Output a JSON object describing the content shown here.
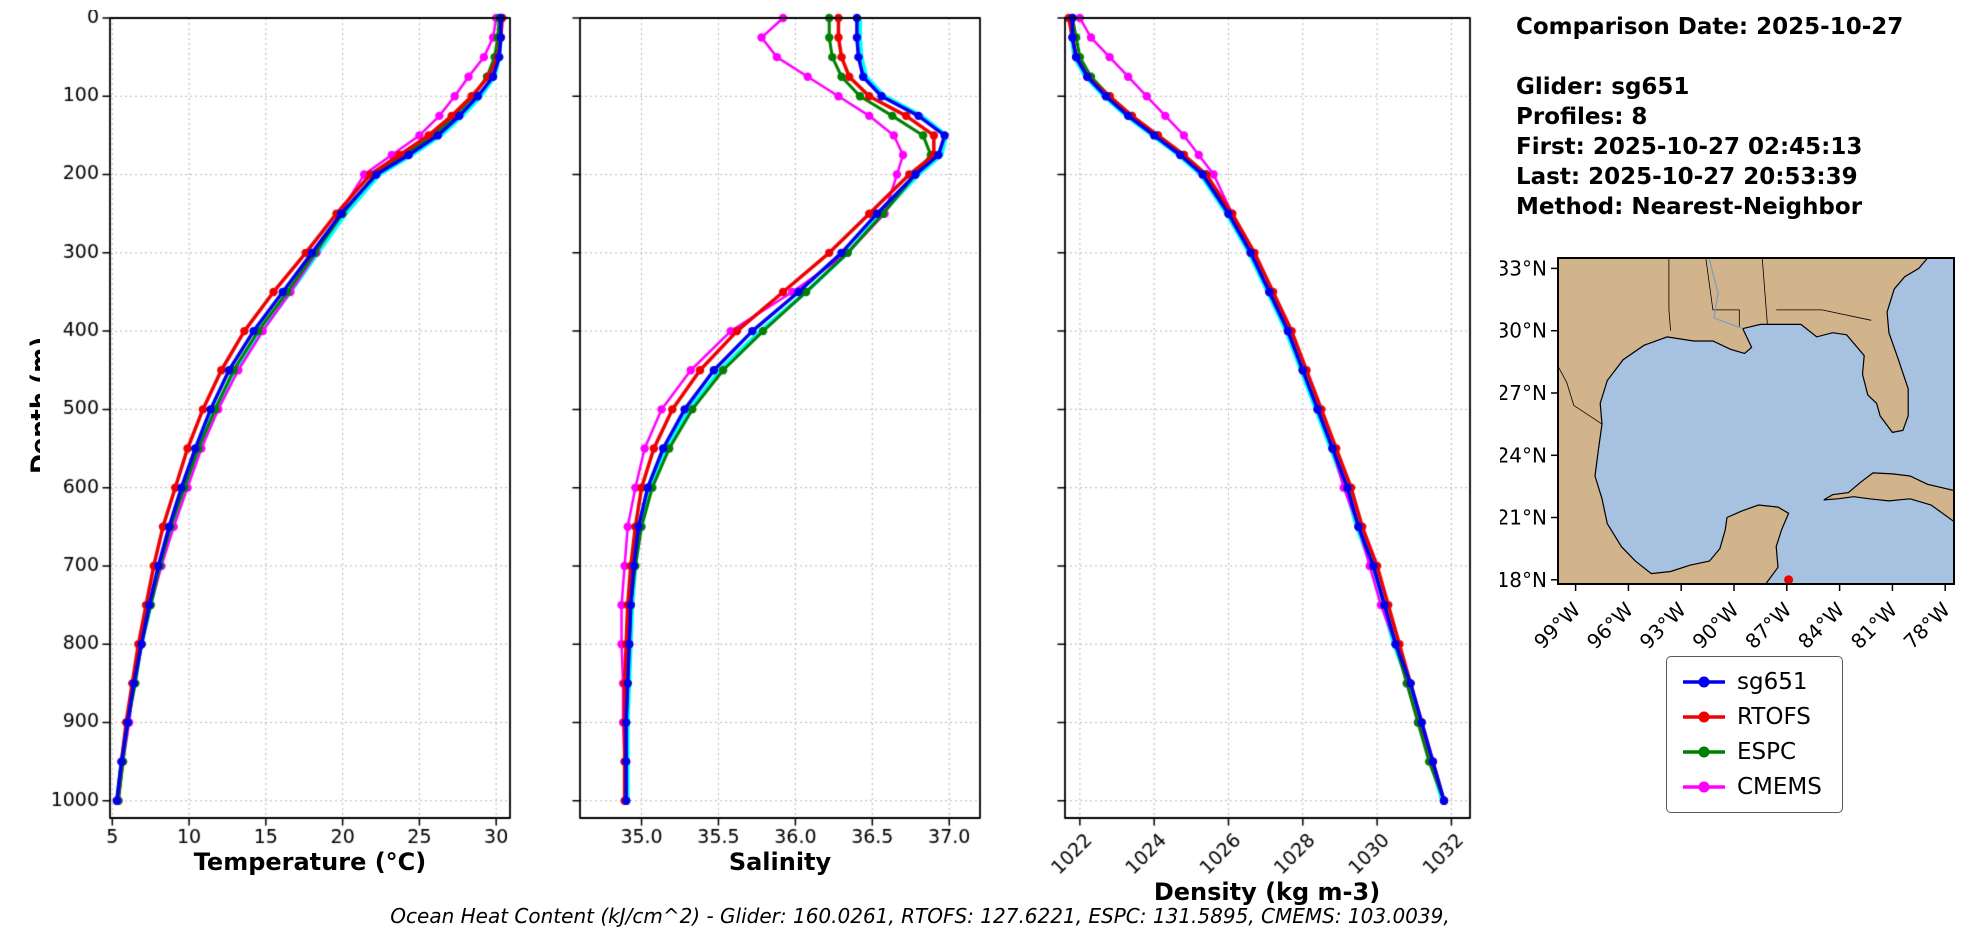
{
  "axes": {
    "depth_label": "Depth (m)"
  },
  "info": {
    "comparison_date": "Comparison Date: 2025-10-27",
    "glider": "Glider: sg651",
    "profiles": "Profiles: 8",
    "first": "First: 2025-10-27 02:45:13",
    "last": "Last: 2025-10-27 20:53:39",
    "method": "Method: Nearest-Neighbor"
  },
  "legend": {
    "items": [
      {
        "label": "sg651",
        "color": "#0000ee"
      },
      {
        "label": "RTOFS",
        "color": "#ee0000"
      },
      {
        "label": "ESPC",
        "color": "#008000"
      },
      {
        "label": "CMEMS",
        "color": "#ff00ff"
      }
    ]
  },
  "map": {
    "land_color": "#d2b48c",
    "water_color": "#a7c2e0",
    "lat_ticks": [
      "33°N",
      "30°N",
      "27°N",
      "24°N",
      "21°N",
      "18°N"
    ],
    "lon_ticks": [
      "99°W",
      "96°W",
      "93°W",
      "90°W",
      "87°W",
      "84°W",
      "81°W",
      "78°W"
    ]
  },
  "footer": {
    "ohc": "Ocean Heat Content (kJ/cm^2) - Glider: 160.0261,  RTOFS: 127.6221,  ESPC: 131.5895,  CMEMS: 103.0039,"
  },
  "chart_data": [
    {
      "type": "line",
      "xlabel": "Temperature (°C)",
      "ylabel": "Depth (m)",
      "xlim": [
        4.85,
        30.9
      ],
      "xticks": [
        5,
        10,
        15,
        20,
        25,
        30
      ],
      "xtick_labels": [
        "5",
        "10",
        "15",
        "20",
        "25",
        "30"
      ],
      "ylim": [
        0,
        1022
      ],
      "yticks": [
        0,
        100,
        200,
        300,
        400,
        500,
        600,
        700,
        800,
        900,
        1000
      ],
      "ytick_labels": [
        "0",
        "100",
        "200",
        "300",
        "400",
        "500",
        "600",
        "700",
        "800",
        "900",
        "1000"
      ],
      "depths": [
        0,
        25,
        50,
        75,
        100,
        125,
        150,
        175,
        200,
        250,
        300,
        350,
        400,
        450,
        500,
        550,
        600,
        650,
        700,
        750,
        800,
        850,
        900,
        950,
        1000
      ],
      "series": [
        {
          "name": "glider-profiles",
          "color": "#00ffff",
          "lw": 4,
          "markers": false,
          "values": [
            30.3,
            30.3,
            30.2,
            29.9,
            29.0,
            27.8,
            26.4,
            24.5,
            22.4,
            20.2,
            18.4,
            16.6,
            14.7,
            13.0,
            11.7,
            10.6,
            9.7,
            8.8,
            8.1,
            7.5,
            6.9,
            6.4,
            6.0,
            5.6,
            5.3
          ]
        },
        {
          "name": "CMEMS",
          "color": "#ff00ff",
          "lw": 2.5,
          "markers": true,
          "values": [
            30.0,
            29.8,
            29.2,
            28.2,
            27.3,
            26.3,
            25.0,
            23.2,
            21.4,
            19.8,
            18.3,
            16.6,
            14.8,
            13.2,
            11.9,
            10.8,
            9.9,
            9.0,
            8.2,
            7.5,
            6.9,
            6.4,
            6.1,
            5.7,
            5.4
          ]
        },
        {
          "name": "ESPC",
          "color": "#008000",
          "lw": 3,
          "markers": true,
          "values": [
            30.2,
            30.1,
            29.9,
            29.4,
            28.5,
            27.3,
            25.9,
            24.0,
            22.1,
            20.0,
            18.2,
            16.4,
            14.5,
            12.9,
            11.7,
            10.6,
            9.7,
            8.8,
            8.1,
            7.5,
            6.9,
            6.5,
            6.0,
            5.7,
            5.4
          ]
        },
        {
          "name": "RTOFS",
          "color": "#ee0000",
          "lw": 3.5,
          "markers": true,
          "values": [
            30.4,
            30.3,
            30.1,
            29.5,
            28.4,
            27.1,
            25.6,
            23.7,
            21.8,
            19.6,
            17.6,
            15.5,
            13.6,
            12.1,
            10.9,
            9.9,
            9.1,
            8.3,
            7.7,
            7.2,
            6.7,
            6.3,
            5.9,
            5.6,
            5.3
          ]
        },
        {
          "name": "sg651",
          "color": "#0000ee",
          "lw": 3.5,
          "markers": true,
          "values": [
            30.3,
            30.3,
            30.2,
            29.8,
            28.8,
            27.6,
            26.2,
            24.3,
            22.2,
            19.9,
            18.0,
            16.1,
            14.2,
            12.6,
            11.4,
            10.4,
            9.5,
            8.7,
            8.0,
            7.4,
            6.9,
            6.4,
            6.0,
            5.6,
            5.3
          ]
        }
      ]
    },
    {
      "type": "line",
      "xlabel": "Salinity",
      "ylabel": "Depth (m)",
      "xlim": [
        34.6,
        37.2
      ],
      "xticks": [
        35.0,
        35.5,
        36.0,
        36.5,
        37.0
      ],
      "xtick_labels": [
        "35.0",
        "35.5",
        "36.0",
        "36.5",
        "37.0"
      ],
      "ylim": [
        0,
        1022
      ],
      "yticks": [
        0,
        100,
        200,
        300,
        400,
        500,
        600,
        700,
        800,
        900,
        1000
      ],
      "ytick_labels": [
        "0",
        "100",
        "200",
        "300",
        "400",
        "500",
        "600",
        "700",
        "800",
        "900",
        "1000"
      ],
      "depths": [
        0,
        25,
        50,
        75,
        100,
        125,
        150,
        175,
        200,
        250,
        300,
        350,
        400,
        450,
        500,
        550,
        600,
        650,
        700,
        750,
        800,
        850,
        900,
        950,
        1000
      ],
      "series": [
        {
          "name": "glider-profiles",
          "color": "#00ffff",
          "lw": 4,
          "markers": false,
          "values": [
            36.42,
            36.42,
            36.43,
            36.46,
            36.58,
            36.82,
            36.98,
            36.95,
            36.8,
            36.56,
            36.34,
            36.07,
            35.77,
            35.51,
            35.31,
            35.16,
            35.06,
            34.99,
            34.96,
            34.94,
            34.93,
            34.92,
            34.91,
            34.91,
            34.91
          ]
        },
        {
          "name": "CMEMS",
          "color": "#ff00ff",
          "lw": 2.5,
          "markers": true,
          "values": [
            35.92,
            35.78,
            35.88,
            36.08,
            36.28,
            36.48,
            36.64,
            36.7,
            36.66,
            36.58,
            36.34,
            35.98,
            35.58,
            35.32,
            35.13,
            35.02,
            34.96,
            34.91,
            34.89,
            34.87,
            34.87,
            34.88,
            34.88,
            34.89,
            34.9
          ]
        },
        {
          "name": "ESPC",
          "color": "#008000",
          "lw": 3,
          "markers": true,
          "values": [
            36.22,
            36.22,
            36.24,
            36.3,
            36.42,
            36.63,
            36.83,
            36.88,
            36.78,
            36.57,
            36.34,
            36.07,
            35.79,
            35.53,
            35.33,
            35.18,
            35.07,
            35.0,
            34.96,
            34.93,
            34.92,
            34.91,
            34.9,
            34.9,
            34.9
          ]
        },
        {
          "name": "RTOFS",
          "color": "#ee0000",
          "lw": 3.5,
          "markers": true,
          "values": [
            36.28,
            36.28,
            36.3,
            36.35,
            36.48,
            36.72,
            36.9,
            36.9,
            36.74,
            36.48,
            36.22,
            35.92,
            35.62,
            35.38,
            35.2,
            35.08,
            35.0,
            34.96,
            34.93,
            34.91,
            34.9,
            34.89,
            34.89,
            34.89,
            34.89
          ]
        },
        {
          "name": "sg651",
          "color": "#0000ee",
          "lw": 3.5,
          "markers": true,
          "values": [
            36.4,
            36.4,
            36.41,
            36.44,
            36.56,
            36.8,
            36.97,
            36.93,
            36.78,
            36.53,
            36.3,
            36.02,
            35.72,
            35.47,
            35.28,
            35.14,
            35.04,
            34.98,
            34.95,
            34.93,
            34.92,
            34.91,
            34.9,
            34.9,
            34.9
          ]
        }
      ]
    },
    {
      "type": "line",
      "xlabel": "Density (kg m-3)",
      "ylabel": "Depth (m)",
      "xlim": [
        1021.6,
        1032.5
      ],
      "xticks": [
        1022,
        1024,
        1026,
        1028,
        1030,
        1032
      ],
      "xtick_labels": [
        "1022",
        "1024",
        "1026",
        "1028",
        "1030",
        "1032"
      ],
      "ylim": [
        0,
        1022
      ],
      "yticks": [
        0,
        100,
        200,
        300,
        400,
        500,
        600,
        700,
        800,
        900,
        1000
      ],
      "ytick_labels": [
        "0",
        "100",
        "200",
        "300",
        "400",
        "500",
        "600",
        "700",
        "800",
        "900",
        "1000"
      ],
      "depths": [
        0,
        25,
        50,
        75,
        100,
        125,
        150,
        175,
        200,
        250,
        300,
        350,
        400,
        450,
        500,
        550,
        600,
        650,
        700,
        750,
        800,
        850,
        900,
        950,
        1000
      ],
      "series": [
        {
          "name": "glider-profiles",
          "color": "#00ffff",
          "lw": 4,
          "markers": false,
          "values": [
            1021.75,
            1021.78,
            1021.85,
            1022.15,
            1022.65,
            1023.25,
            1023.95,
            1024.65,
            1025.25,
            1025.95,
            1026.55,
            1027.05,
            1027.55,
            1027.95,
            1028.35,
            1028.75,
            1029.15,
            1029.45,
            1029.85,
            1030.15,
            1030.45,
            1030.85,
            1031.15,
            1031.45,
            1031.75
          ]
        },
        {
          "name": "CMEMS",
          "color": "#ff00ff",
          "lw": 2.5,
          "markers": true,
          "values": [
            1022.0,
            1022.3,
            1022.8,
            1023.3,
            1023.8,
            1024.3,
            1024.8,
            1025.2,
            1025.6,
            1026.1,
            1026.6,
            1027.1,
            1027.6,
            1028.0,
            1028.4,
            1028.8,
            1029.1,
            1029.5,
            1029.8,
            1030.1,
            1030.5,
            1030.8,
            1031.1,
            1031.5,
            1031.8
          ]
        },
        {
          "name": "ESPC",
          "color": "#008000",
          "lw": 3,
          "markers": true,
          "values": [
            1021.8,
            1021.9,
            1022.0,
            1022.3,
            1022.8,
            1023.4,
            1024.1,
            1024.8,
            1025.4,
            1026.0,
            1026.6,
            1027.1,
            1027.6,
            1028.0,
            1028.4,
            1028.8,
            1029.2,
            1029.5,
            1029.9,
            1030.2,
            1030.5,
            1030.8,
            1031.1,
            1031.4,
            1031.8
          ]
        },
        {
          "name": "RTOFS",
          "color": "#ee0000",
          "lw": 3.5,
          "markers": true,
          "values": [
            1021.7,
            1021.8,
            1021.9,
            1022.2,
            1022.8,
            1023.4,
            1024.1,
            1024.8,
            1025.4,
            1026.1,
            1026.7,
            1027.2,
            1027.7,
            1028.1,
            1028.5,
            1028.9,
            1029.3,
            1029.6,
            1030.0,
            1030.3,
            1030.6,
            1030.9,
            1031.2,
            1031.5,
            1031.8
          ]
        },
        {
          "name": "sg651",
          "color": "#0000ee",
          "lw": 3.5,
          "markers": true,
          "values": [
            1021.8,
            1021.8,
            1021.9,
            1022.2,
            1022.7,
            1023.3,
            1024.0,
            1024.7,
            1025.3,
            1026.0,
            1026.6,
            1027.1,
            1027.6,
            1028.0,
            1028.4,
            1028.8,
            1029.2,
            1029.5,
            1029.9,
            1030.2,
            1030.5,
            1030.9,
            1031.2,
            1031.5,
            1031.8
          ]
        }
      ]
    }
  ]
}
